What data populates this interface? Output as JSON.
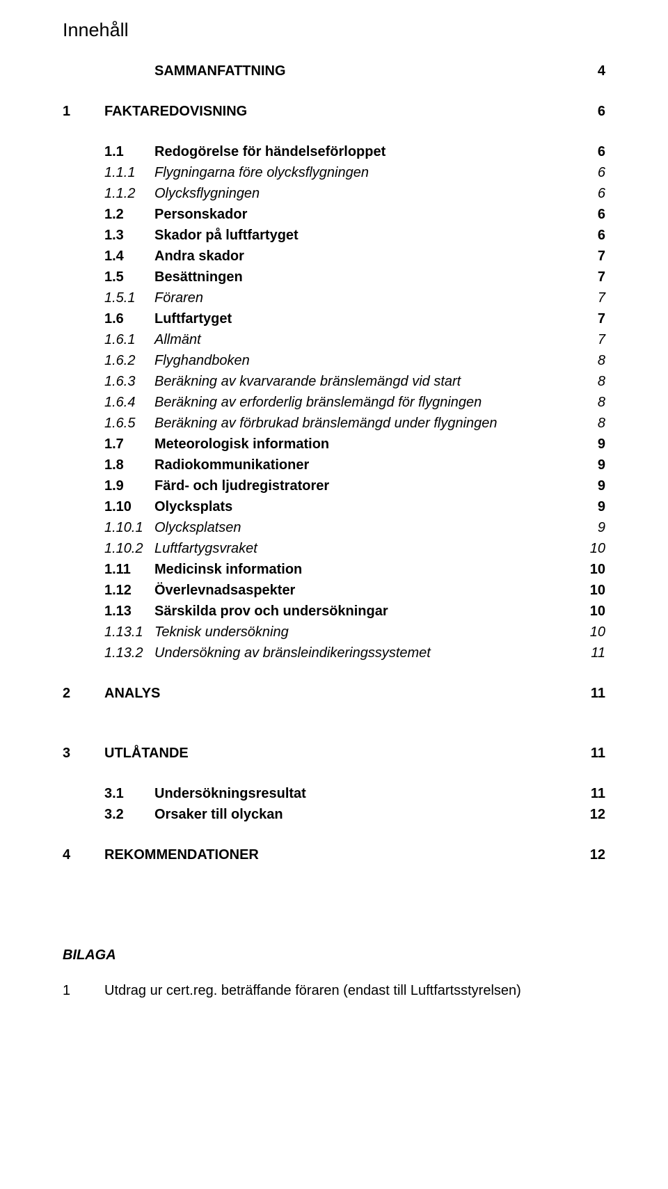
{
  "title": "Innehåll",
  "font": {
    "title_size_pt": 20,
    "body_size_pt": 15
  },
  "colors": {
    "text": "#000000",
    "background": "#ffffff"
  },
  "entries": [
    {
      "num": "",
      "label": "SAMMANFATTNING",
      "page": "4",
      "bold": true,
      "italic": false,
      "indent": 1,
      "gap_after": "lg"
    },
    {
      "num": "1",
      "label": "FAKTAREDOVISNING",
      "page": "6",
      "bold": true,
      "italic": false,
      "indent": 0,
      "gap_after": "lg"
    },
    {
      "num": "1.1",
      "label": "Redogörelse för händelseförloppet",
      "page": "6",
      "bold": true,
      "italic": false,
      "indent": 1
    },
    {
      "num": "1.1.1",
      "label": "Flygningarna före olycksflygningen",
      "page": "6",
      "bold": false,
      "italic": true,
      "indent": 1
    },
    {
      "num": "1.1.2",
      "label": "Olycksflygningen",
      "page": "6",
      "bold": false,
      "italic": true,
      "indent": 1
    },
    {
      "num": "1.2",
      "label": "Personskador",
      "page": "6",
      "bold": true,
      "italic": false,
      "indent": 1
    },
    {
      "num": "1.3",
      "label": "Skador på luftfartyget",
      "page": "6",
      "bold": true,
      "italic": false,
      "indent": 1
    },
    {
      "num": "1.4",
      "label": "Andra skador",
      "page": "7",
      "bold": true,
      "italic": false,
      "indent": 1
    },
    {
      "num": "1.5",
      "label": "Besättningen",
      "page": "7",
      "bold": true,
      "italic": false,
      "indent": 1
    },
    {
      "num": "1.5.1",
      "label": "Föraren",
      "page": "7",
      "bold": false,
      "italic": true,
      "indent": 1
    },
    {
      "num": "1.6",
      "label": "Luftfartyget",
      "page": "7",
      "bold": true,
      "italic": false,
      "indent": 1
    },
    {
      "num": "1.6.1",
      "label": "Allmänt",
      "page": "7",
      "bold": false,
      "italic": true,
      "indent": 1
    },
    {
      "num": "1.6.2",
      "label": "Flyghandboken",
      "page": "8",
      "bold": false,
      "italic": true,
      "indent": 1
    },
    {
      "num": "1.6.3",
      "label": "Beräkning av kvarvarande bränslemängd vid start",
      "page": "8",
      "bold": false,
      "italic": true,
      "indent": 1
    },
    {
      "num": "1.6.4",
      "label": "Beräkning av erforderlig bränslemängd för flygningen",
      "page": "8",
      "bold": false,
      "italic": true,
      "indent": 1
    },
    {
      "num": "1.6.5",
      "label": "Beräkning av förbrukad bränslemängd under flygningen",
      "page": "8",
      "bold": false,
      "italic": true,
      "indent": 1
    },
    {
      "num": "1.7",
      "label": "Meteorologisk information",
      "page": "9",
      "bold": true,
      "italic": false,
      "indent": 1
    },
    {
      "num": "1.8",
      "label": "Radiokommunikationer",
      "page": "9",
      "bold": true,
      "italic": false,
      "indent": 1
    },
    {
      "num": "1.9",
      "label": "Färd- och ljudregistratorer",
      "page": "9",
      "bold": true,
      "italic": false,
      "indent": 1
    },
    {
      "num": "1.10",
      "label": "Olycksplats",
      "page": "9",
      "bold": true,
      "italic": false,
      "indent": 1
    },
    {
      "num": "1.10.1",
      "label": "Olycksplatsen",
      "page": "9",
      "bold": false,
      "italic": true,
      "indent": 1
    },
    {
      "num": "1.10.2",
      "label": "Luftfartygsvraket",
      "page": "10",
      "bold": false,
      "italic": true,
      "indent": 1
    },
    {
      "num": "1.11",
      "label": "Medicinsk information",
      "page": "10",
      "bold": true,
      "italic": false,
      "indent": 1
    },
    {
      "num": "1.12",
      "label": "Överlevnadsaspekter",
      "page": "10",
      "bold": true,
      "italic": false,
      "indent": 1
    },
    {
      "num": "1.13",
      "label": "Särskilda prov och undersökningar",
      "page": "10",
      "bold": true,
      "italic": false,
      "indent": 1
    },
    {
      "num": "1.13.1",
      "label": "Teknisk undersökning",
      "page": "10",
      "bold": false,
      "italic": true,
      "indent": 1
    },
    {
      "num": "1.13.2",
      "label": "Undersökning av bränsleindikeringssystemet",
      "page": "11",
      "bold": false,
      "italic": true,
      "indent": 1,
      "gap_after": "lg"
    },
    {
      "num": "2",
      "label": "ANALYS",
      "page": "11",
      "bold": true,
      "italic": false,
      "indent": 0,
      "gap_after": "lg"
    },
    {
      "gap_after": "lg",
      "spacer": true
    },
    {
      "num": "3",
      "label": "UTLÅTANDE",
      "page": "11",
      "bold": true,
      "italic": false,
      "indent": 0,
      "gap_after": "lg"
    },
    {
      "num": "3.1",
      "label": "Undersökningsresultat",
      "page": "11",
      "bold": true,
      "italic": false,
      "indent": 1
    },
    {
      "num": "3.2",
      "label": "Orsaker till olyckan",
      "page": "12",
      "bold": true,
      "italic": false,
      "indent": 1,
      "gap_after": "lg"
    },
    {
      "num": "4",
      "label": "REKOMMENDATIONER",
      "page": "12",
      "bold": true,
      "italic": false,
      "indent": 0,
      "gap_after": "lg"
    }
  ],
  "appendix": {
    "heading": "BILAGA",
    "items": [
      {
        "num": "1",
        "label": "Utdrag ur cert.reg. beträffande föraren (endast till Luftfartsstyrelsen)"
      }
    ]
  }
}
